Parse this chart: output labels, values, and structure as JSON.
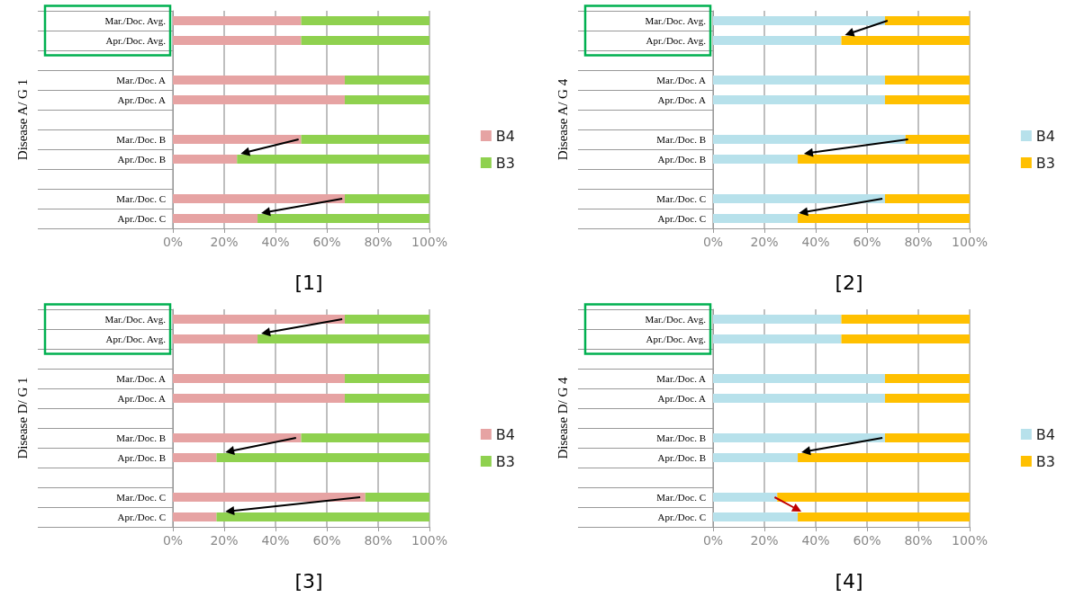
{
  "chart_data": [
    {
      "type": "bar",
      "title": "[1]",
      "ylabel": "Disease A/ G 1",
      "orientation": "horizontal",
      "stacked": true,
      "legend": "right",
      "grid": "x",
      "categories": [
        "Mar./Doc. Avg.",
        "Apr./Doc. Avg.",
        null,
        "Mar./Doc. A",
        "Apr./Doc. A",
        null,
        "Mar./Doc. B",
        "Apr./Doc. B",
        null,
        "Mar./Doc. C",
        "Apr./Doc. C"
      ],
      "series": [
        {
          "name": "B4",
          "color": "#e6a3a3",
          "values": [
            50,
            50,
            null,
            67,
            67,
            null,
            50,
            25,
            null,
            67,
            33
          ]
        },
        {
          "name": "B3",
          "color": "#8fd14f",
          "values": [
            50,
            50,
            null,
            33,
            33,
            null,
            50,
            75,
            null,
            33,
            67
          ]
        }
      ],
      "xlim": [
        0,
        100
      ],
      "xticks": [
        {
          "value": 0,
          "label": "0%"
        },
        {
          "value": 20,
          "label": "20%"
        },
        {
          "value": 40,
          "label": "40%"
        },
        {
          "value": 60,
          "label": "60%"
        },
        {
          "value": 80,
          "label": "80%"
        },
        {
          "value": 100,
          "label": "100%"
        }
      ]
    },
    {
      "type": "bar",
      "title": "[2]",
      "ylabel": "Disease A/ G 4",
      "orientation": "horizontal",
      "stacked": true,
      "legend": "right",
      "grid": "x",
      "categories": [
        "Mar./Doc. Avg.",
        "Apr./Doc. Avg.",
        null,
        "Mar./Doc. A",
        "Apr./Doc. A",
        null,
        "Mar./Doc. B",
        "Apr./Doc. B",
        null,
        "Mar./Doc. C",
        "Apr./Doc. C"
      ],
      "series": [
        {
          "name": "B4",
          "color": "#b7e1eb",
          "values": [
            67,
            50,
            null,
            67,
            67,
            null,
            75,
            33,
            null,
            67,
            33
          ]
        },
        {
          "name": "B3",
          "color": "#ffc000",
          "values": [
            33,
            50,
            null,
            33,
            33,
            null,
            25,
            67,
            null,
            33,
            67
          ]
        }
      ],
      "xlim": [
        0,
        100
      ],
      "xticks": [
        {
          "value": 0,
          "label": "0%"
        },
        {
          "value": 20,
          "label": "20%"
        },
        {
          "value": 40,
          "label": "40%"
        },
        {
          "value": 60,
          "label": "60%"
        },
        {
          "value": 80,
          "label": "80%"
        },
        {
          "value": 100,
          "label": "100%"
        }
      ]
    },
    {
      "type": "bar",
      "title": "[3]",
      "ylabel": "Disease D/ G 1",
      "orientation": "horizontal",
      "stacked": true,
      "legend": "right",
      "grid": "x",
      "categories": [
        "Mar./Doc. Avg.",
        "Apr./Doc. Avg.",
        null,
        "Mar./Doc. A",
        "Apr./Doc. A",
        null,
        "Mar./Doc. B",
        "Apr./Doc. B",
        null,
        "Mar./Doc. C",
        "Apr./Doc. C"
      ],
      "series": [
        {
          "name": "B4",
          "color": "#e6a3a3",
          "values": [
            67,
            33,
            null,
            67,
            67,
            null,
            50,
            17,
            null,
            75,
            17
          ]
        },
        {
          "name": "B3",
          "color": "#8fd14f",
          "values": [
            33,
            67,
            null,
            33,
            33,
            null,
            50,
            83,
            null,
            25,
            83
          ]
        }
      ],
      "xlim": [
        0,
        100
      ],
      "xticks": [
        {
          "value": 0,
          "label": "0%"
        },
        {
          "value": 20,
          "label": "20%"
        },
        {
          "value": 40,
          "label": "40%"
        },
        {
          "value": 60,
          "label": "60%"
        },
        {
          "value": 80,
          "label": "80%"
        },
        {
          "value": 100,
          "label": "100%"
        }
      ]
    },
    {
      "type": "bar",
      "title": "[4]",
      "ylabel": "Disease D/ G 4",
      "orientation": "horizontal",
      "stacked": true,
      "legend": "right",
      "grid": "x",
      "categories": [
        "Mar./Doc. Avg.",
        "Apr./Doc. Avg.",
        null,
        "Mar./Doc. A",
        "Apr./Doc. A",
        null,
        "Mar./Doc. B",
        "Apr./Doc. B",
        null,
        "Mar./Doc. C",
        "Apr./Doc. C"
      ],
      "series": [
        {
          "name": "B4",
          "color": "#b7e1eb",
          "values": [
            50,
            50,
            null,
            67,
            67,
            null,
            67,
            33,
            null,
            25,
            33
          ]
        },
        {
          "name": "B3",
          "color": "#ffc000",
          "values": [
            50,
            50,
            null,
            33,
            33,
            null,
            33,
            67,
            null,
            75,
            67
          ]
        }
      ],
      "xlim": [
        0,
        100
      ],
      "xticks": [
        {
          "value": 0,
          "label": "0%"
        },
        {
          "value": 20,
          "label": "20%"
        },
        {
          "value": 40,
          "label": "40%"
        },
        {
          "value": 60,
          "label": "60%"
        },
        {
          "value": 80,
          "label": "80%"
        },
        {
          "value": 100,
          "label": "100%"
        }
      ]
    }
  ]
}
